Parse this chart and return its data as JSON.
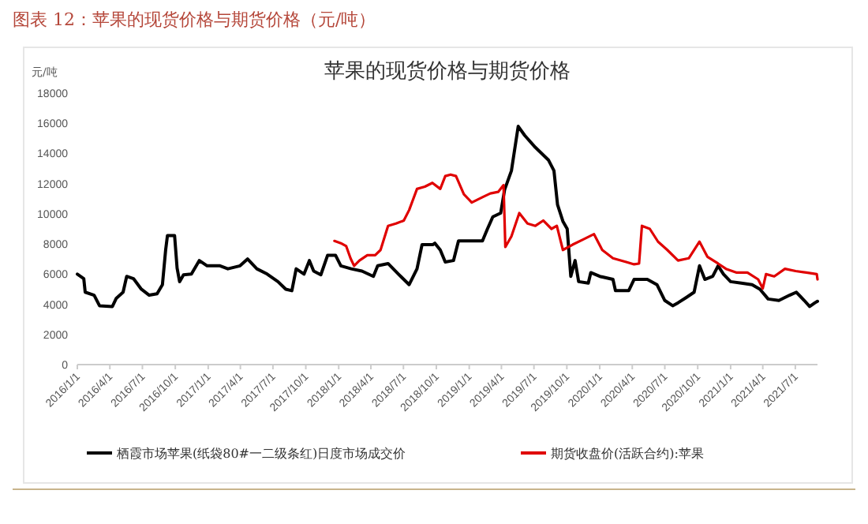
{
  "chart_data": {
    "type": "line",
    "title": "图表 12：苹果的现货价格与期货价格（元/吨）",
    "subtitle": "苹果的现货价格与期货价格",
    "ylabel": "元/吨",
    "xlim": [
      "2016-01-01",
      "2021-09-01"
    ],
    "xticks": [
      {
        "value": "2016-01-01",
        "label": "2016/1/1"
      },
      {
        "value": "2016-04-01",
        "label": "2016/4/1"
      },
      {
        "value": "2016-07-01",
        "label": "2016/7/1"
      },
      {
        "value": "2016-10-01",
        "label": "2016/10/1"
      },
      {
        "value": "2017-01-01",
        "label": "2017/1/1"
      },
      {
        "value": "2017-04-01",
        "label": "2017/4/1"
      },
      {
        "value": "2017-07-01",
        "label": "2017/7/1"
      },
      {
        "value": "2017-10-01",
        "label": "2017/10/1"
      },
      {
        "value": "2018-01-01",
        "label": "2018/1/1"
      },
      {
        "value": "2018-04-01",
        "label": "2018/4/1"
      },
      {
        "value": "2018-07-01",
        "label": "2018/7/1"
      },
      {
        "value": "2018-10-01",
        "label": "2018/10/1"
      },
      {
        "value": "2019-01-01",
        "label": "2019/1/1"
      },
      {
        "value": "2019-04-01",
        "label": "2019/4/1"
      },
      {
        "value": "2019-07-01",
        "label": "2019/7/1"
      },
      {
        "value": "2019-10-01",
        "label": "2019/10/1"
      },
      {
        "value": "2020-01-01",
        "label": "2020/1/1"
      },
      {
        "value": "2020-04-01",
        "label": "2020/4/1"
      },
      {
        "value": "2020-07-01",
        "label": "2020/7/1"
      },
      {
        "value": "2020-10-01",
        "label": "2020/10/1"
      },
      {
        "value": "2021-01-01",
        "label": "2021/1/1"
      },
      {
        "value": "2021-04-01",
        "label": "2021/4/1"
      },
      {
        "value": "2021-07-01",
        "label": "2021/7/1"
      }
    ],
    "ylim": [
      0,
      18000
    ],
    "yticks": [
      0,
      2000,
      4000,
      6000,
      8000,
      10000,
      12000,
      14000,
      16000,
      18000
    ],
    "grid": false,
    "legend": "bottom",
    "marker": "none",
    "line_style": "solid",
    "series": [
      {
        "name": "栖霞市场苹果(纸袋80#一二级条红)日度市场成交价",
        "color": "#000000",
        "x": [
          "2016-01-01",
          "2016-01-19",
          "2016-01-23",
          "2016-02-17",
          "2016-03-03",
          "2016-04-08",
          "2016-04-19",
          "2016-05-08",
          "2016-05-18",
          "2016-06-06",
          "2016-06-28",
          "2016-07-20",
          "2016-08-11",
          "2016-08-26",
          "2016-09-04",
          "2016-09-09",
          "2016-09-29",
          "2016-10-06",
          "2016-10-13",
          "2016-10-24",
          "2016-11-15",
          "2016-12-07",
          "2016-12-29",
          "2017-02-03",
          "2017-02-25",
          "2017-03-31",
          "2017-04-21",
          "2017-05-17",
          "2017-06-15",
          "2017-07-15",
          "2017-08-06",
          "2017-08-23",
          "2017-09-04",
          "2017-09-26",
          "2017-10-11",
          "2017-10-23",
          "2017-11-12",
          "2017-12-01",
          "2017-12-23",
          "2018-01-07",
          "2018-02-05",
          "2018-03-07",
          "2018-04-08",
          "2018-04-20",
          "2018-05-19",
          "2018-06-17",
          "2018-07-17",
          "2018-08-08",
          "2018-08-22",
          "2018-09-21",
          "2018-09-27",
          "2018-10-12",
          "2018-10-26",
          "2018-11-18",
          "2018-12-02",
          "2019-02-07",
          "2019-02-21",
          "2019-03-08",
          "2019-03-30",
          "2019-04-10",
          "2019-04-29",
          "2019-05-18",
          "2019-06-05",
          "2019-07-05",
          "2019-08-11",
          "2019-08-26",
          "2019-09-05",
          "2019-09-20",
          "2019-10-02",
          "2019-10-12",
          "2019-10-24",
          "2019-11-03",
          "2019-11-30",
          "2019-12-07",
          "2020-01-01",
          "2020-02-07",
          "2020-02-14",
          "2020-03-22",
          "2020-04-06",
          "2020-05-13",
          "2020-06-09",
          "2020-07-01",
          "2020-07-23",
          "2020-08-07",
          "2020-08-30",
          "2020-09-21",
          "2020-10-06",
          "2020-10-21",
          "2020-11-12",
          "2020-11-27",
          "2020-12-12",
          "2021-01-01",
          "2021-01-31",
          "2021-03-02",
          "2021-03-24",
          "2021-04-16",
          "2021-05-16",
          "2021-06-15",
          "2021-07-04",
          "2021-07-26",
          "2021-08-10",
          "2021-08-25",
          "2021-09-01"
        ],
        "values": [
          6000,
          5700,
          4800,
          4600,
          3900,
          3850,
          4400,
          4800,
          5850,
          5700,
          5000,
          4600,
          4700,
          5300,
          7600,
          8550,
          8550,
          6400,
          5500,
          5950,
          6000,
          6900,
          6550,
          6550,
          6350,
          6550,
          7000,
          6350,
          6000,
          5500,
          5000,
          4900,
          6350,
          6000,
          6900,
          6200,
          5950,
          7250,
          7250,
          6550,
          6350,
          6200,
          5850,
          6550,
          6700,
          6000,
          5300,
          6350,
          7950,
          7950,
          8050,
          7600,
          6800,
          6900,
          8200,
          8200,
          9000,
          9800,
          10050,
          11600,
          12850,
          15800,
          15200,
          14400,
          13550,
          12850,
          10600,
          9500,
          9000,
          5850,
          6900,
          5500,
          5400,
          6100,
          5850,
          5650,
          4900,
          4900,
          5650,
          5650,
          5300,
          4250,
          3900,
          4100,
          4450,
          4800,
          6550,
          5650,
          5850,
          6550,
          6000,
          5500,
          5400,
          5300,
          5000,
          4350,
          4250,
          4600,
          4800,
          4250,
          3850,
          4100,
          4200
        ]
      },
      {
        "name": "期货收盘价(活跃合约):苹果",
        "color": "#e00000",
        "x": [
          "2017-12-20",
          "2018-01-07",
          "2018-01-22",
          "2018-02-03",
          "2018-02-13",
          "2018-02-28",
          "2018-03-22",
          "2018-04-13",
          "2018-04-28",
          "2018-05-19",
          "2018-06-10",
          "2018-07-02",
          "2018-07-17",
          "2018-08-08",
          "2018-08-30",
          "2018-09-20",
          "2018-10-12",
          "2018-10-26",
          "2018-11-10",
          "2018-11-25",
          "2018-12-17",
          "2019-01-08",
          "2019-02-07",
          "2019-03-01",
          "2019-03-23",
          "2019-04-07",
          "2019-04-12",
          "2019-04-29",
          "2019-05-21",
          "2019-06-13",
          "2019-07-05",
          "2019-07-27",
          "2019-08-19",
          "2019-09-03",
          "2019-09-20",
          "2019-10-17",
          "2019-11-16",
          "2019-12-16",
          "2020-01-08",
          "2020-02-07",
          "2020-03-15",
          "2020-04-06",
          "2020-04-20",
          "2020-04-28",
          "2020-05-20",
          "2020-06-12",
          "2020-07-08",
          "2020-08-07",
          "2020-09-06",
          "2020-10-06",
          "2020-10-28",
          "2020-11-27",
          "2020-12-19",
          "2021-01-18",
          "2021-02-17",
          "2021-03-19",
          "2021-04-01",
          "2021-04-10",
          "2021-05-03",
          "2021-06-02",
          "2021-07-02",
          "2021-08-01",
          "2021-08-30",
          "2021-09-01"
        ],
        "values": [
          8200,
          8050,
          7850,
          7050,
          6550,
          6900,
          7250,
          7250,
          7600,
          9200,
          9350,
          9550,
          10250,
          11650,
          11800,
          12050,
          11650,
          12500,
          12600,
          12500,
          11300,
          10750,
          11100,
          11350,
          11450,
          11900,
          7800,
          8500,
          10050,
          9350,
          9200,
          9550,
          9000,
          9200,
          7600,
          7950,
          8300,
          8650,
          7600,
          7050,
          6800,
          6650,
          6700,
          9200,
          9000,
          8150,
          7600,
          6900,
          7050,
          8150,
          7150,
          6700,
          6350,
          6100,
          6100,
          5650,
          5050,
          6000,
          5850,
          6350,
          6200,
          6100,
          6000,
          5650
        ]
      }
    ]
  }
}
